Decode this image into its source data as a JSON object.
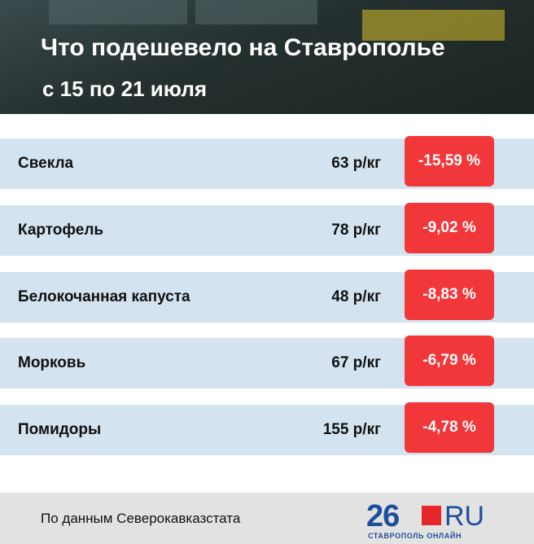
{
  "header": {
    "title": "Что подешевело на Ставрополье",
    "subtitle": "с 15 по 21 июля"
  },
  "table": {
    "rows": [
      [
        "Свекла",
        "63 р/кг",
        "-15,59 %"
      ],
      [
        "Картофель",
        "78 р/кг",
        "-9,02 %"
      ],
      [
        "Белокочанная капуста",
        "48 р/кг",
        "-8,83 %"
      ],
      [
        "Морковь",
        "67 р/кг",
        "-6,79 %"
      ],
      [
        "Помидоры",
        "155 р/кг",
        "-4,78 %"
      ]
    ]
  },
  "footer": {
    "source": "По данным Северокавказстата",
    "logo_number": "26",
    "logo_domain": "RU",
    "logo_caption": "СТАВРОПОЛЬ ОНЛАЙН"
  }
}
